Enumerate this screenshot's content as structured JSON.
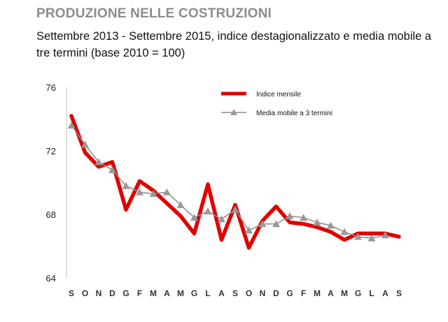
{
  "chart_data": {
    "type": "line",
    "title": "PRODUZIONE NELLE COSTRUZIONI",
    "subtitle": "Settembre 2013 - Settembre 2015, indice destagionalizzato e media mobile a tre termini (base 2010 = 100)",
    "xlabel": "",
    "ylabel": "",
    "ylim": [
      64,
      76
    ],
    "yticks": [
      "64",
      "68",
      "72",
      "76"
    ],
    "categories": [
      "S",
      "O",
      "N",
      "D",
      "G",
      "F",
      "M",
      "A",
      "M",
      "G",
      "L",
      "A",
      "S",
      "O",
      "N",
      "D",
      "G",
      "F",
      "M",
      "A",
      "M",
      "G",
      "L",
      "A",
      "S"
    ],
    "series": [
      {
        "name": "Indice mensile",
        "color": "#e00000",
        "values": [
          74.2,
          71.9,
          71.0,
          71.3,
          68.3,
          70.1,
          69.5,
          68.7,
          67.9,
          66.8,
          69.9,
          66.4,
          68.6,
          65.9,
          67.6,
          68.5,
          67.5,
          67.4,
          67.2,
          66.9,
          66.4,
          66.8,
          66.8,
          66.8,
          66.6
        ]
      },
      {
        "name": "Media mobile a 3 termini",
        "color": "#8c8c8c",
        "values": [
          73.6,
          72.4,
          71.3,
          70.8,
          69.8,
          69.4,
          69.3,
          69.4,
          68.6,
          67.8,
          68.2,
          67.7,
          68.3,
          67.0,
          67.4,
          67.4,
          67.9,
          67.8,
          67.5,
          67.3,
          66.9,
          66.6,
          66.5,
          66.7,
          null
        ]
      }
    ],
    "legend": "top-right",
    "grid": false
  }
}
